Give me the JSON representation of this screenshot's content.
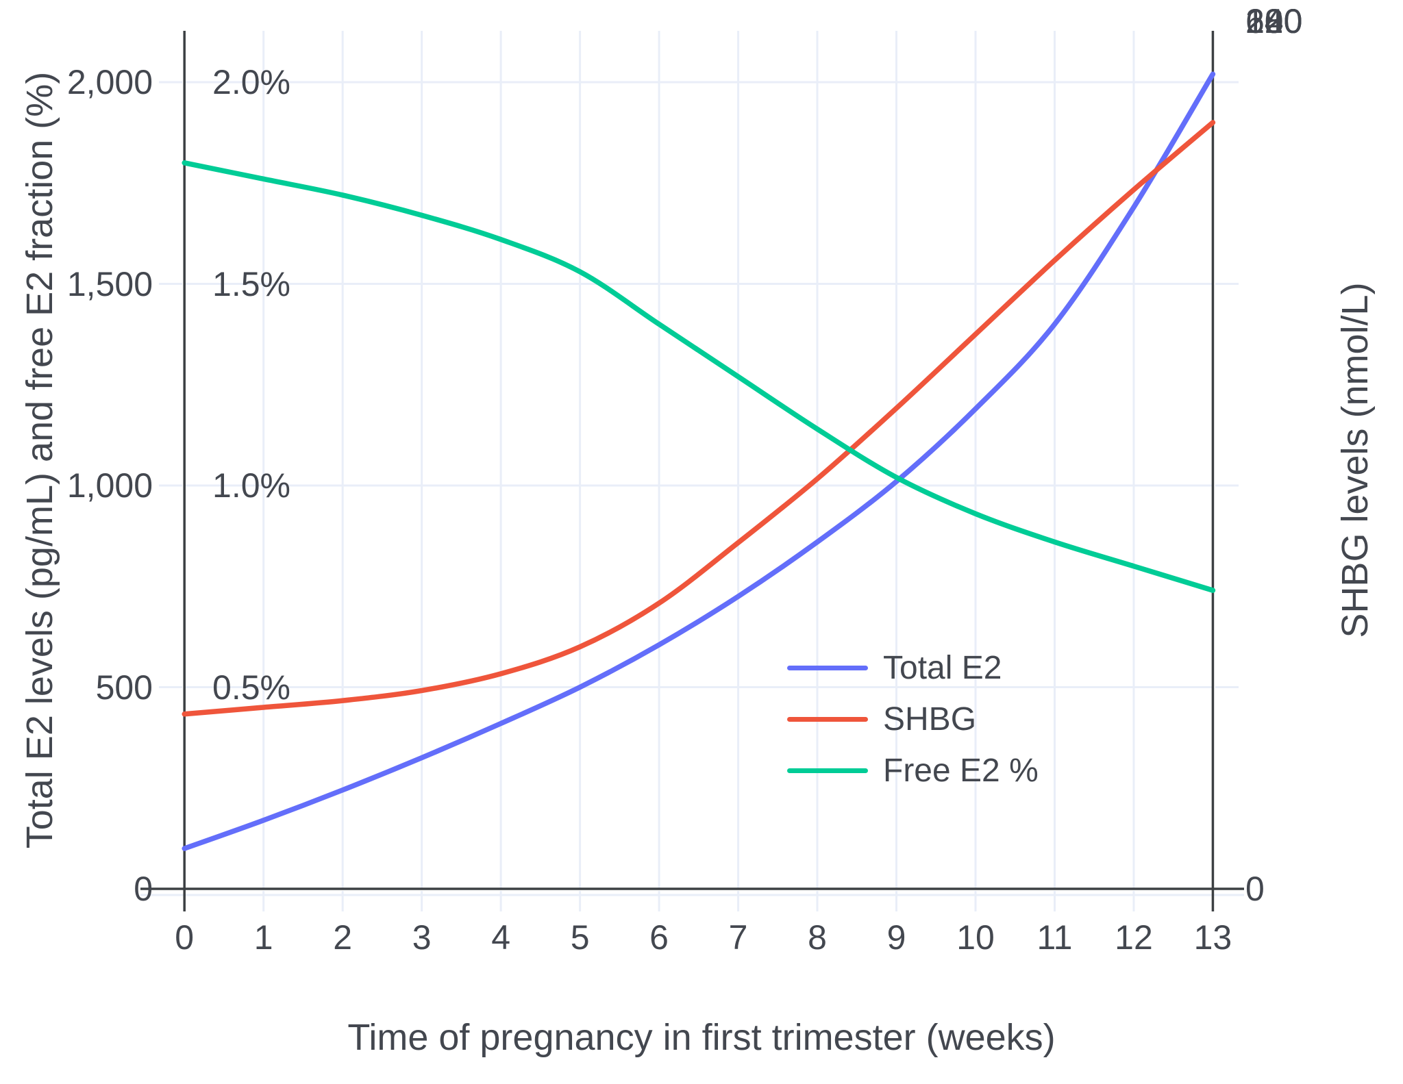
{
  "chart_data": {
    "type": "line",
    "title": "",
    "xlabel": "Time of pregnancy in first trimester (weeks)",
    "ylabel_left": "Total E2 levels (pg/mL) and free E2 fraction (%)",
    "ylabel_right": "SHBG levels (nmol/L)",
    "x": [
      0,
      1,
      2,
      3,
      4,
      5,
      6,
      7,
      8,
      9,
      10,
      11,
      12,
      13
    ],
    "x_tick_labels": [
      "0",
      "1",
      "2",
      "3",
      "4",
      "5",
      "6",
      "7",
      "8",
      "9",
      "10",
      "11",
      "12",
      "13"
    ],
    "y_left_ticks": [
      {
        "label": "0",
        "value": 0
      },
      {
        "label": "500",
        "value": 500
      },
      {
        "label": "1,000",
        "value": 1000
      },
      {
        "label": "1,500",
        "value": 1500
      },
      {
        "label": "2,000",
        "value": 2000
      }
    ],
    "y_right_ticks": [
      {
        "label": "0",
        "value": 0
      },
      {
        "label": "60",
        "value": 60
      },
      {
        "label": "120",
        "value": 120
      },
      {
        "label": "180",
        "value": 180
      },
      {
        "label": "240",
        "value": 240
      }
    ],
    "annotations": [
      {
        "text": "0.5%",
        "value": 500
      },
      {
        "text": "1.0%",
        "value": 1000
      },
      {
        "text": "1.5%",
        "value": 1500
      },
      {
        "text": "2.0%",
        "value": 2000
      }
    ],
    "ylim_left": [
      0,
      2130
    ],
    "ylim_right": [
      0,
      255
    ],
    "xlim": [
      0,
      13
    ],
    "grid": true,
    "legend_position": "inside-lower-right",
    "series": [
      {
        "name": "Total E2",
        "unit": "pg/mL",
        "axis": "left",
        "color": "#636EFA",
        "left_axis_scale": 1,
        "values": [
          100,
          170,
          245,
          325,
          410,
          500,
          605,
          725,
          860,
          1010,
          1190,
          1400,
          1690,
          2020
        ]
      },
      {
        "name": "SHBG",
        "unit": "nmol/L",
        "axis": "right",
        "color": "#EF553B",
        "left_axis_scale": 8.3333,
        "values": [
          52,
          54,
          56,
          59,
          64,
          72,
          85,
          103,
          122,
          143,
          165,
          187,
          208,
          228
        ]
      },
      {
        "name": "Free E2 %",
        "unit": "%",
        "axis": "left-percent",
        "color": "#00CC96",
        "left_axis_scale": 1000,
        "values": [
          1.8,
          1.76,
          1.72,
          1.67,
          1.61,
          1.53,
          1.4,
          1.27,
          1.14,
          1.02,
          0.93,
          0.86,
          0.8,
          0.74
        ]
      }
    ]
  },
  "style": {
    "grid_color": "#e9eef8",
    "axis_color": "#3c4043",
    "text_color": "#43474f",
    "background": "#ffffff"
  }
}
